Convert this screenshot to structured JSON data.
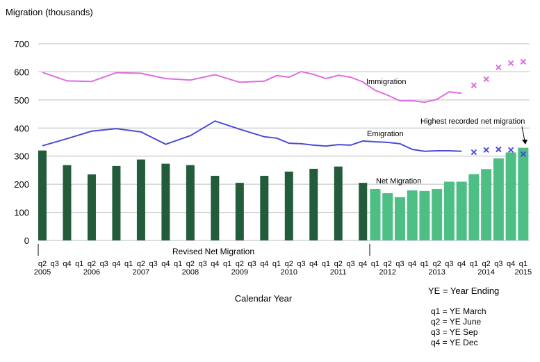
{
  "chart_data": {
    "type": "bar+line",
    "ylabel": "Migration (thousands)",
    "xlabel": "Calendar Year",
    "ylim": [
      0,
      700
    ],
    "yticks": [
      0,
      100,
      200,
      300,
      400,
      500,
      600,
      700
    ],
    "grid": true,
    "quarters": [
      "q2",
      "q3",
      "q4",
      "q1",
      "q2",
      "q3",
      "q4",
      "q1",
      "q2",
      "q3",
      "q4",
      "q1",
      "q2",
      "q3",
      "q4",
      "q1",
      "q2",
      "q3",
      "q4",
      "q1",
      "q2",
      "q3",
      "q4",
      "q1",
      "q2",
      "q3",
      "q4",
      "q1",
      "q2",
      "q3",
      "q4",
      "q1",
      "q2",
      "q3",
      "q4",
      "q1",
      "q2",
      "q3",
      "q4",
      "q1"
    ],
    "years": [
      {
        "label": "2005",
        "index": 0
      },
      {
        "label": "2006",
        "index": 4
      },
      {
        "label": "2007",
        "index": 8
      },
      {
        "label": "2008",
        "index": 12
      },
      {
        "label": "2009",
        "index": 16
      },
      {
        "label": "2010",
        "index": 20
      },
      {
        "label": "2011",
        "index": 24
      },
      {
        "label": "2012",
        "index": 28
      },
      {
        "label": "2013",
        "index": 32
      },
      {
        "label": "2014",
        "index": 36
      },
      {
        "label": "2015",
        "index": 39
      }
    ],
    "series": [
      {
        "name": "Revised Net Migration",
        "kind": "bar",
        "color": "#225c3b",
        "values": [
          320,
          null,
          268,
          null,
          235,
          null,
          265,
          null,
          288,
          null,
          273,
          null,
          268,
          null,
          230,
          null,
          205,
          null,
          230,
          null,
          245,
          null,
          255,
          null,
          263,
          null,
          205,
          null,
          null,
          null,
          null,
          null,
          null,
          null,
          null,
          null,
          null,
          null,
          null,
          null
        ]
      },
      {
        "name": "Net Migration",
        "kind": "bar",
        "color": "#4dbf85",
        "values": [
          null,
          null,
          null,
          null,
          null,
          null,
          null,
          null,
          null,
          null,
          null,
          null,
          null,
          null,
          null,
          null,
          null,
          null,
          null,
          null,
          null,
          null,
          null,
          null,
          null,
          null,
          null,
          183,
          168,
          154,
          178,
          176,
          183,
          209,
          209,
          236,
          254,
          292,
          313,
          330
        ]
      },
      {
        "name": "Immigration",
        "kind": "line",
        "color": "#e06ce0",
        "values": [
          598,
          null,
          568,
          null,
          566,
          null,
          597,
          null,
          595,
          null,
          576,
          null,
          571,
          null,
          590,
          null,
          563,
          null,
          567,
          587,
          581,
          601,
          591,
          576,
          588,
          581,
          564,
          534,
          517,
          497,
          497,
          492,
          502,
          529,
          524,
          null,
          null,
          null,
          null,
          null
        ],
        "provisional": [
          null,
          null,
          null,
          null,
          null,
          null,
          null,
          null,
          null,
          null,
          null,
          null,
          null,
          null,
          null,
          null,
          null,
          null,
          null,
          null,
          null,
          null,
          null,
          null,
          null,
          null,
          null,
          null,
          null,
          null,
          null,
          null,
          null,
          null,
          null,
          552,
          574,
          616,
          631,
          636
        ]
      },
      {
        "name": "Emigration",
        "kind": "line",
        "color": "#4b4bd8",
        "values": [
          337,
          null,
          362,
          null,
          389,
          null,
          398,
          null,
          386,
          null,
          342,
          null,
          373,
          null,
          425,
          null,
          396,
          null,
          369,
          364,
          346,
          344,
          339,
          336,
          341,
          339,
          354,
          351,
          349,
          344,
          324,
          317,
          319,
          319,
          317,
          null,
          null,
          null,
          null,
          null
        ],
        "provisional": [
          null,
          null,
          null,
          null,
          null,
          null,
          null,
          null,
          null,
          null,
          null,
          null,
          null,
          null,
          null,
          null,
          null,
          null,
          null,
          null,
          null,
          null,
          null,
          null,
          null,
          null,
          null,
          null,
          null,
          null,
          null,
          null,
          null,
          null,
          null,
          314,
          322,
          324,
          322,
          307
        ]
      }
    ],
    "annotations": {
      "immigration": "Immigration",
      "emigration": "Emigration",
      "net": "Net Migration",
      "highest": "Highest recorded net migration",
      "revised": "Revised Net Migration"
    },
    "key": {
      "title": "YE = Year Ending",
      "items": [
        "q1 = YE March",
        "q2 = YE June",
        "q3 = YE Sep",
        "q4 = YE Dec"
      ]
    }
  }
}
